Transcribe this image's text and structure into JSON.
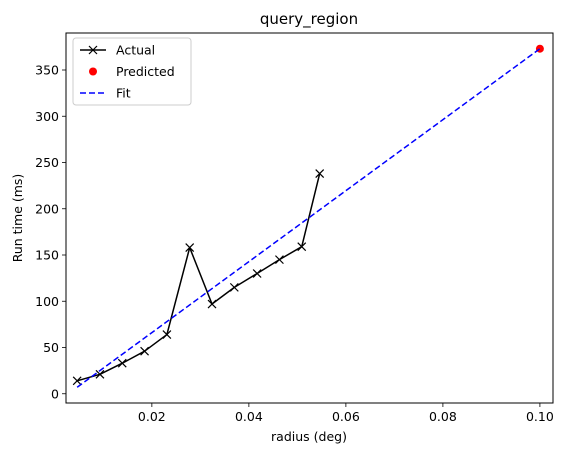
{
  "chart_data": {
    "type": "line",
    "title": "query_region",
    "xlabel": "radius (deg)",
    "ylabel": "Run time (ms)",
    "xlim": [
      0.0023,
      0.1027
    ],
    "ylim": [
      -10,
      390
    ],
    "xticks": [
      0.02,
      0.04,
      0.06,
      0.08,
      0.1
    ],
    "xtick_labels": [
      "0.02",
      "0.04",
      "0.06",
      "0.08",
      "0.10"
    ],
    "yticks": [
      0,
      50,
      100,
      150,
      200,
      250,
      300,
      350
    ],
    "ytick_labels": [
      "0",
      "50",
      "100",
      "150",
      "200",
      "250",
      "300",
      "350"
    ],
    "grid": false,
    "legend_position": "top-left",
    "series": [
      {
        "name": "Actual",
        "kind": "line-x-markers",
        "color": "#000000",
        "x": [
          0.0046,
          0.0093,
          0.0139,
          0.0185,
          0.0231,
          0.0278,
          0.0324,
          0.037,
          0.0417,
          0.0463,
          0.0509,
          0.0546
        ],
        "y": [
          14,
          21,
          33,
          46,
          64,
          158,
          97,
          115,
          130,
          145,
          159,
          238
        ]
      },
      {
        "name": "Predicted",
        "kind": "point",
        "color": "#ff0000",
        "x": [
          0.1
        ],
        "y": [
          373
        ]
      },
      {
        "name": "Fit",
        "kind": "dashed-line",
        "color": "#0000ff",
        "x": [
          0.0046,
          0.1
        ],
        "y": [
          7,
          373
        ]
      }
    ]
  }
}
